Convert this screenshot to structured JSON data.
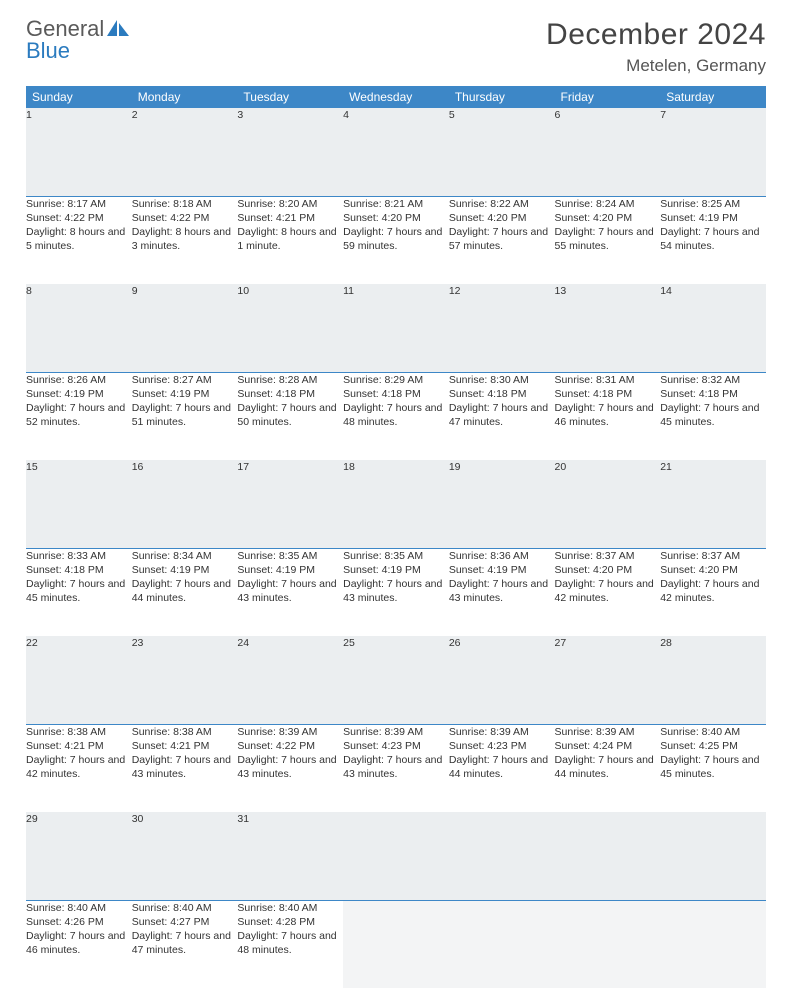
{
  "logo": {
    "text1": "General",
    "text2": "Blue"
  },
  "title": "December 2024",
  "location": "Metelen, Germany",
  "colors": {
    "header_bg": "#3d87c7",
    "header_fg": "#ffffff",
    "daynum_bg": "#ebeef0",
    "daynum_border": "#3d87c7",
    "text": "#333333",
    "logo_gray": "#5a5a5a",
    "logo_blue": "#2b7bbf",
    "page_bg": "#ffffff"
  },
  "day_headers": [
    "Sunday",
    "Monday",
    "Tuesday",
    "Wednesday",
    "Thursday",
    "Friday",
    "Saturday"
  ],
  "weeks": [
    [
      {
        "n": "1",
        "sr": "Sunrise: 8:17 AM",
        "ss": "Sunset: 4:22 PM",
        "dl": "Daylight: 8 hours and 5 minutes."
      },
      {
        "n": "2",
        "sr": "Sunrise: 8:18 AM",
        "ss": "Sunset: 4:22 PM",
        "dl": "Daylight: 8 hours and 3 minutes."
      },
      {
        "n": "3",
        "sr": "Sunrise: 8:20 AM",
        "ss": "Sunset: 4:21 PM",
        "dl": "Daylight: 8 hours and 1 minute."
      },
      {
        "n": "4",
        "sr": "Sunrise: 8:21 AM",
        "ss": "Sunset: 4:20 PM",
        "dl": "Daylight: 7 hours and 59 minutes."
      },
      {
        "n": "5",
        "sr": "Sunrise: 8:22 AM",
        "ss": "Sunset: 4:20 PM",
        "dl": "Daylight: 7 hours and 57 minutes."
      },
      {
        "n": "6",
        "sr": "Sunrise: 8:24 AM",
        "ss": "Sunset: 4:20 PM",
        "dl": "Daylight: 7 hours and 55 minutes."
      },
      {
        "n": "7",
        "sr": "Sunrise: 8:25 AM",
        "ss": "Sunset: 4:19 PM",
        "dl": "Daylight: 7 hours and 54 minutes."
      }
    ],
    [
      {
        "n": "8",
        "sr": "Sunrise: 8:26 AM",
        "ss": "Sunset: 4:19 PM",
        "dl": "Daylight: 7 hours and 52 minutes."
      },
      {
        "n": "9",
        "sr": "Sunrise: 8:27 AM",
        "ss": "Sunset: 4:19 PM",
        "dl": "Daylight: 7 hours and 51 minutes."
      },
      {
        "n": "10",
        "sr": "Sunrise: 8:28 AM",
        "ss": "Sunset: 4:18 PM",
        "dl": "Daylight: 7 hours and 50 minutes."
      },
      {
        "n": "11",
        "sr": "Sunrise: 8:29 AM",
        "ss": "Sunset: 4:18 PM",
        "dl": "Daylight: 7 hours and 48 minutes."
      },
      {
        "n": "12",
        "sr": "Sunrise: 8:30 AM",
        "ss": "Sunset: 4:18 PM",
        "dl": "Daylight: 7 hours and 47 minutes."
      },
      {
        "n": "13",
        "sr": "Sunrise: 8:31 AM",
        "ss": "Sunset: 4:18 PM",
        "dl": "Daylight: 7 hours and 46 minutes."
      },
      {
        "n": "14",
        "sr": "Sunrise: 8:32 AM",
        "ss": "Sunset: 4:18 PM",
        "dl": "Daylight: 7 hours and 45 minutes."
      }
    ],
    [
      {
        "n": "15",
        "sr": "Sunrise: 8:33 AM",
        "ss": "Sunset: 4:18 PM",
        "dl": "Daylight: 7 hours and 45 minutes."
      },
      {
        "n": "16",
        "sr": "Sunrise: 8:34 AM",
        "ss": "Sunset: 4:19 PM",
        "dl": "Daylight: 7 hours and 44 minutes."
      },
      {
        "n": "17",
        "sr": "Sunrise: 8:35 AM",
        "ss": "Sunset: 4:19 PM",
        "dl": "Daylight: 7 hours and 43 minutes."
      },
      {
        "n": "18",
        "sr": "Sunrise: 8:35 AM",
        "ss": "Sunset: 4:19 PM",
        "dl": "Daylight: 7 hours and 43 minutes."
      },
      {
        "n": "19",
        "sr": "Sunrise: 8:36 AM",
        "ss": "Sunset: 4:19 PM",
        "dl": "Daylight: 7 hours and 43 minutes."
      },
      {
        "n": "20",
        "sr": "Sunrise: 8:37 AM",
        "ss": "Sunset: 4:20 PM",
        "dl": "Daylight: 7 hours and 42 minutes."
      },
      {
        "n": "21",
        "sr": "Sunrise: 8:37 AM",
        "ss": "Sunset: 4:20 PM",
        "dl": "Daylight: 7 hours and 42 minutes."
      }
    ],
    [
      {
        "n": "22",
        "sr": "Sunrise: 8:38 AM",
        "ss": "Sunset: 4:21 PM",
        "dl": "Daylight: 7 hours and 42 minutes."
      },
      {
        "n": "23",
        "sr": "Sunrise: 8:38 AM",
        "ss": "Sunset: 4:21 PM",
        "dl": "Daylight: 7 hours and 43 minutes."
      },
      {
        "n": "24",
        "sr": "Sunrise: 8:39 AM",
        "ss": "Sunset: 4:22 PM",
        "dl": "Daylight: 7 hours and 43 minutes."
      },
      {
        "n": "25",
        "sr": "Sunrise: 8:39 AM",
        "ss": "Sunset: 4:23 PM",
        "dl": "Daylight: 7 hours and 43 minutes."
      },
      {
        "n": "26",
        "sr": "Sunrise: 8:39 AM",
        "ss": "Sunset: 4:23 PM",
        "dl": "Daylight: 7 hours and 44 minutes."
      },
      {
        "n": "27",
        "sr": "Sunrise: 8:39 AM",
        "ss": "Sunset: 4:24 PM",
        "dl": "Daylight: 7 hours and 44 minutes."
      },
      {
        "n": "28",
        "sr": "Sunrise: 8:40 AM",
        "ss": "Sunset: 4:25 PM",
        "dl": "Daylight: 7 hours and 45 minutes."
      }
    ],
    [
      {
        "n": "29",
        "sr": "Sunrise: 8:40 AM",
        "ss": "Sunset: 4:26 PM",
        "dl": "Daylight: 7 hours and 46 minutes."
      },
      {
        "n": "30",
        "sr": "Sunrise: 8:40 AM",
        "ss": "Sunset: 4:27 PM",
        "dl": "Daylight: 7 hours and 47 minutes."
      },
      {
        "n": "31",
        "sr": "Sunrise: 8:40 AM",
        "ss": "Sunset: 4:28 PM",
        "dl": "Daylight: 7 hours and 48 minutes."
      },
      {
        "empty": true
      },
      {
        "empty": true
      },
      {
        "empty": true
      },
      {
        "empty": true
      }
    ]
  ]
}
